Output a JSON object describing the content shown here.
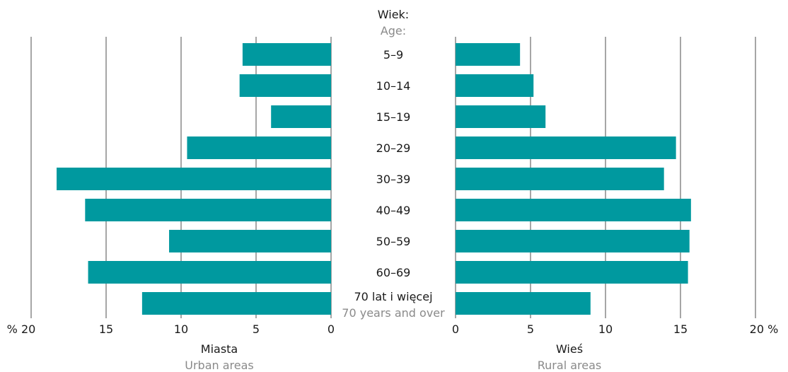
{
  "chart_data": {
    "type": "bar",
    "orientation": "horizontal",
    "layout": "back-to-back",
    "header": {
      "label": "Wiek:",
      "sublabel": "Age:"
    },
    "categories": [
      "5–9",
      "10–14",
      "15–19",
      "20–29",
      "30–39",
      "40–49",
      "50–59",
      "60–69",
      "70 lat i więcej"
    ],
    "category_sublabels": {
      "8": "70 years and over"
    },
    "xlim": [
      0,
      20
    ],
    "grid": true,
    "bar_color": "#00999f",
    "grid_color": "#4d4d4d",
    "series": [
      {
        "name": "Miasta",
        "subtitle": "Urban areas",
        "values": [
          5.9,
          6.1,
          4.0,
          9.6,
          18.3,
          16.4,
          10.8,
          16.2,
          12.6
        ],
        "ticks": [
          "% 20",
          "15",
          "10",
          "5",
          "0"
        ]
      },
      {
        "name": "Wieś",
        "subtitle": "Rural areas",
        "values": [
          4.3,
          5.2,
          6.0,
          14.7,
          13.9,
          15.7,
          15.6,
          15.5,
          9.0
        ],
        "ticks": [
          "0",
          "5",
          "10",
          "15",
          "20 %"
        ]
      }
    ]
  }
}
